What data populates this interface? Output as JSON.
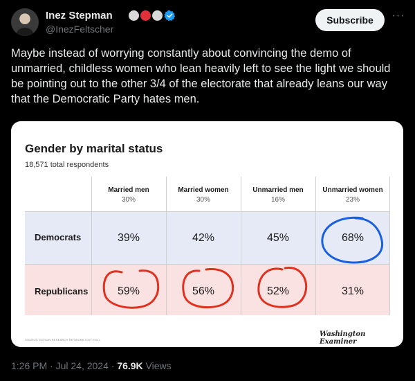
{
  "author": {
    "name": "Inez Stepman",
    "handle": "@InezFeltscher",
    "badge_colors": [
      "#d9d9d9",
      "#e0303b",
      "#d9d9d9",
      "#1d9bf0"
    ]
  },
  "actions": {
    "subscribe_label": "Subscribe",
    "more_label": "···"
  },
  "tweet": {
    "text": "Maybe instead of worrying constantly about convincing the demo of unmarried, childless women who lean heavily left to see the light we should be pointing out to the other 3/4 of the electorate that already leans our way that the Democratic Party hates men."
  },
  "chart": {
    "title": "Gender by marital status",
    "subtitle": "18,571 total respondents",
    "columns": [
      {
        "name": "Married men",
        "share": "30%"
      },
      {
        "name": "Married women",
        "share": "30%"
      },
      {
        "name": "Unmarried men",
        "share": "16%"
      },
      {
        "name": "Unmarried women",
        "share": "23%"
      }
    ],
    "rows": [
      {
        "label": "Democrats",
        "values": [
          "39%",
          "42%",
          "45%",
          "68%"
        ]
      },
      {
        "label": "Republicans",
        "values": [
          "59%",
          "56%",
          "52%",
          "31%"
        ]
      }
    ],
    "source": "SOURCE: EDISON RESEARCH NETWORK EXIT POLL",
    "logo": "Washington Examiner",
    "colors": {
      "dem_bg": "#e6eaf6",
      "rep_bg": "#fbe2e2",
      "red_circle": "#e0301e",
      "blue_circle": "#1a5fe0"
    }
  },
  "meta": {
    "time": "1:26 PM · Jul 24, 2024 · ",
    "views": "76.9K",
    "views_label": " Views"
  }
}
